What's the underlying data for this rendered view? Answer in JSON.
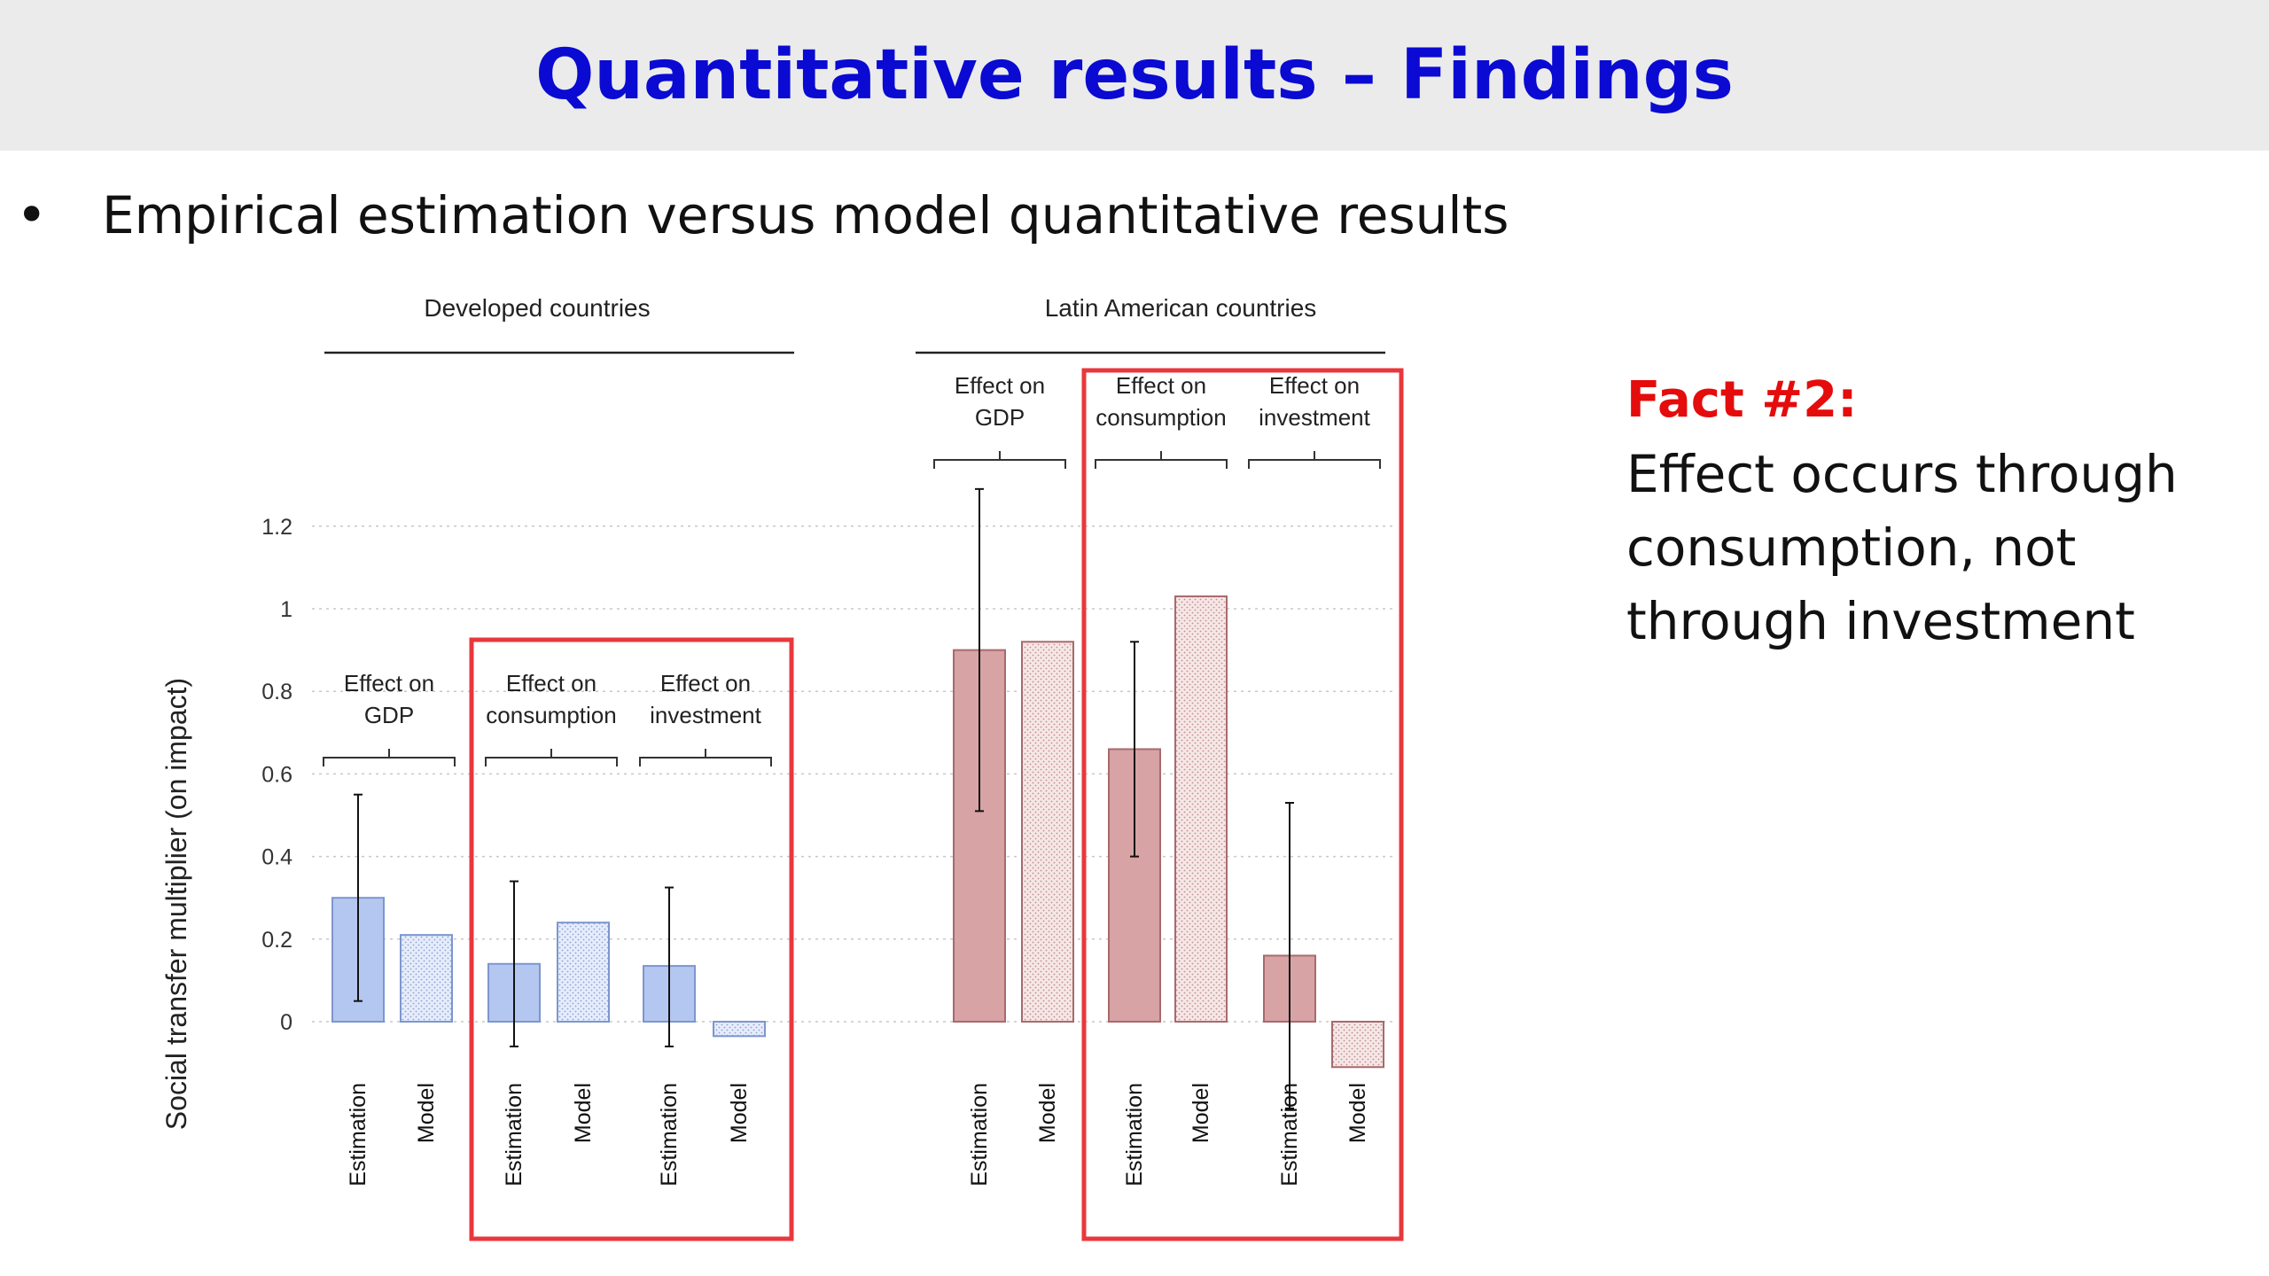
{
  "slide": {
    "title": "Quantitative results – Findings",
    "bullet_marker": "•",
    "bullet_text": "Empirical estimation versus model quantitative results",
    "fact_title": "Fact #2:",
    "fact_lines": [
      "Effect occurs through",
      "consumption, not",
      "through investment"
    ]
  },
  "colors": {
    "title": "#0a0ad2",
    "highlight_box": "#e8383d",
    "developed_fill": "#b4c7f0",
    "developed_stroke": "#7d96cf",
    "latam_fill": "#d7a3a5",
    "latam_stroke": "#a86a6d",
    "fact_title": "#e40c0c"
  },
  "chart_data": {
    "type": "bar",
    "ylabel": "Social transfer multiplier (on impact)",
    "ylim": [
      -0.05,
      1.25
    ],
    "yticks": [
      0,
      0.2,
      0.4,
      0.6,
      0.8,
      1,
      1.2
    ],
    "ytick_labels": [
      "0",
      "0.2",
      "0.4",
      "0.6",
      "0.8",
      "1",
      "1.2"
    ],
    "grid": true,
    "panels": [
      {
        "name": "Developed countries",
        "groups": [
          {
            "label_lines": [
              "Effect on",
              "GDP"
            ],
            "highlighted": false,
            "bars": [
              {
                "label": "Estimation",
                "value": 0.3,
                "ci": [
                  0.05,
                  0.55
                ]
              },
              {
                "label": "Model",
                "value": 0.21
              }
            ]
          },
          {
            "label_lines": [
              "Effect on",
              "consumption"
            ],
            "highlighted": true,
            "bars": [
              {
                "label": "Estimation",
                "value": 0.14,
                "ci": [
                  -0.06,
                  0.34
                ]
              },
              {
                "label": "Model",
                "value": 0.24
              }
            ]
          },
          {
            "label_lines": [
              "Effect on",
              "investment"
            ],
            "highlighted": true,
            "bars": [
              {
                "label": "Estimation",
                "value": 0.135,
                "ci": [
                  -0.06,
                  0.325
                ]
              },
              {
                "label": "Model",
                "value": -0.035
              }
            ]
          }
        ]
      },
      {
        "name": "Latin American countries",
        "groups": [
          {
            "label_lines": [
              "Effect on",
              "GDP"
            ],
            "highlighted": false,
            "bars": [
              {
                "label": "Estimation",
                "value": 0.9,
                "ci": [
                  0.51,
                  1.29
                ]
              },
              {
                "label": "Model",
                "value": 0.92
              }
            ]
          },
          {
            "label_lines": [
              "Effect on",
              "consumption"
            ],
            "highlighted": true,
            "bars": [
              {
                "label": "Estimation",
                "value": 0.66,
                "ci": [
                  0.4,
                  0.92
                ]
              },
              {
                "label": "Model",
                "value": 1.03
              }
            ]
          },
          {
            "label_lines": [
              "Effect on",
              "investment"
            ],
            "highlighted": true,
            "bars": [
              {
                "label": "Estimation",
                "value": 0.16,
                "ci": [
                  -0.21,
                  0.53
                ]
              },
              {
                "label": "Model",
                "value": -0.11
              }
            ]
          }
        ]
      }
    ]
  }
}
